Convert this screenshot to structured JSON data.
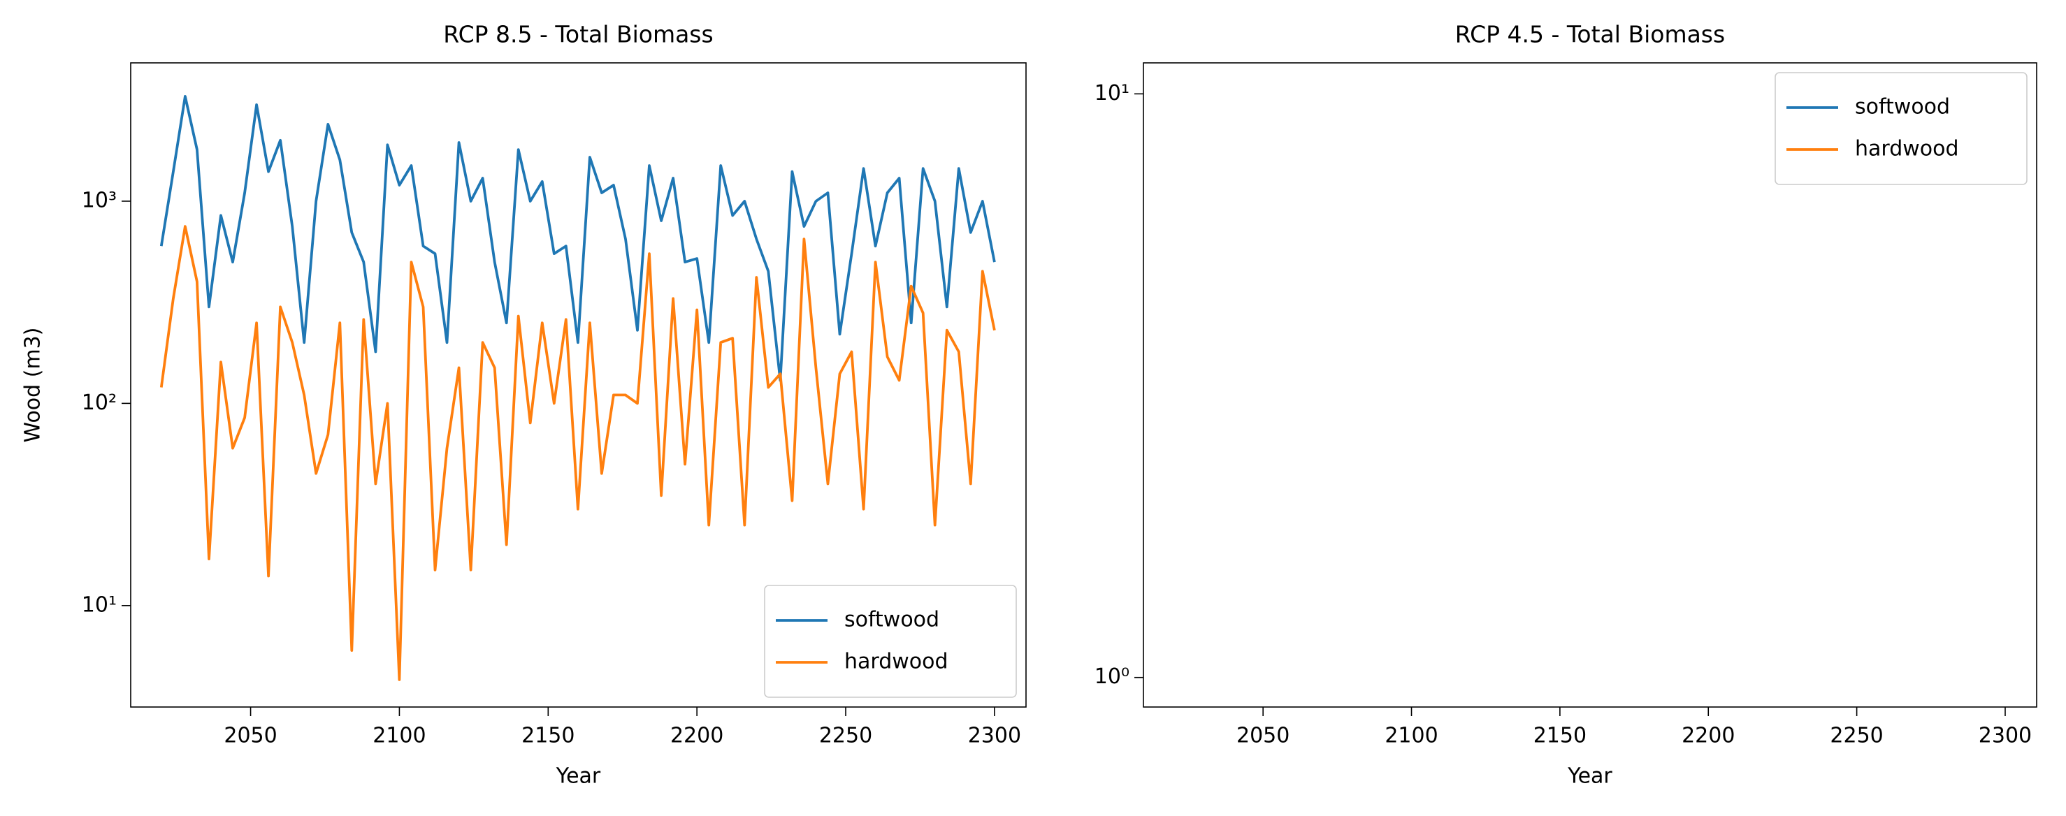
{
  "chart_data": [
    {
      "type": "line",
      "title": "RCP 8.5 - Total Biomass",
      "xlabel": "Year",
      "ylabel": "Wood (m3)",
      "x": [
        2020,
        2024,
        2028,
        2032,
        2036,
        2040,
        2044,
        2048,
        2052,
        2056,
        2060,
        2064,
        2068,
        2072,
        2076,
        2080,
        2084,
        2088,
        2092,
        2096,
        2100,
        2104,
        2108,
        2112,
        2116,
        2120,
        2124,
        2128,
        2132,
        2136,
        2140,
        2144,
        2148,
        2152,
        2156,
        2160,
        2164,
        2168,
        2172,
        2176,
        2180,
        2184,
        2188,
        2192,
        2196,
        2200,
        2204,
        2208,
        2212,
        2216,
        2220,
        2224,
        2228,
        2232,
        2236,
        2240,
        2244,
        2248,
        2252,
        2256,
        2260,
        2264,
        2268,
        2272,
        2276,
        2280,
        2284,
        2288,
        2292,
        2296,
        2300
      ],
      "series": [
        {
          "name": "softwood",
          "color": "#1f77b4",
          "values": [
            600,
            1400,
            3300,
            1800,
            300,
            850,
            500,
            1100,
            3000,
            1400,
            2000,
            750,
            200,
            1000,
            2400,
            1600,
            700,
            500,
            180,
            1900,
            1200,
            1500,
            600,
            550,
            200,
            1950,
            1000,
            1300,
            500,
            250,
            1800,
            1000,
            1250,
            550,
            600,
            200,
            1650,
            1100,
            1200,
            650,
            230,
            1500,
            800,
            1300,
            500,
            520,
            200,
            1500,
            850,
            1000,
            650,
            450,
            130,
            1400,
            750,
            1000,
            1100,
            220,
            550,
            1450,
            600,
            1100,
            1300,
            250,
            1450,
            1000,
            300,
            1450,
            700,
            1000,
            500
          ]
        },
        {
          "name": "hardwood",
          "color": "#ff7f0e",
          "values": [
            120,
            330,
            750,
            400,
            17,
            160,
            60,
            85,
            250,
            14,
            300,
            200,
            110,
            45,
            70,
            250,
            6,
            260,
            40,
            100,
            4.3,
            500,
            300,
            15,
            60,
            150,
            15,
            200,
            150,
            20,
            270,
            80,
            250,
            100,
            260,
            30,
            250,
            45,
            110,
            110,
            100,
            550,
            35,
            330,
            50,
            290,
            25,
            200,
            210,
            25,
            420,
            120,
            140,
            33,
            650,
            150,
            40,
            140,
            180,
            30,
            500,
            170,
            130,
            380,
            280,
            25,
            230,
            180,
            40,
            450,
            230
          ]
        }
      ],
      "xlim": [
        2009.7,
        2310.6
      ],
      "xticks": [
        2050,
        2100,
        2150,
        2200,
        2250,
        2300
      ],
      "ylim": [
        3.15,
        4830
      ],
      "yscale": "log",
      "yticks": [
        {
          "value": 10,
          "label": "10¹"
        },
        {
          "value": 100,
          "label": "10²"
        },
        {
          "value": 1000,
          "label": "10³"
        }
      ],
      "legend": "lower right"
    },
    {
      "type": "line",
      "title": "RCP 4.5 - Total Biomass",
      "xlabel": "Year",
      "x": [],
      "series": [
        {
          "name": "softwood",
          "color": "#1f77b4",
          "values": []
        },
        {
          "name": "hardwood",
          "color": "#ff7f0e",
          "values": []
        }
      ],
      "xlim": [
        2009.7,
        2310.6
      ],
      "xticks": [
        2050,
        2100,
        2150,
        2200,
        2250,
        2300
      ],
      "ylim": [
        0.89,
        11.3
      ],
      "yscale": "log",
      "yticks": [
        {
          "value": 1,
          "label": "10⁰"
        },
        {
          "value": 10,
          "label": "10¹"
        }
      ],
      "legend": "upper right"
    }
  ]
}
